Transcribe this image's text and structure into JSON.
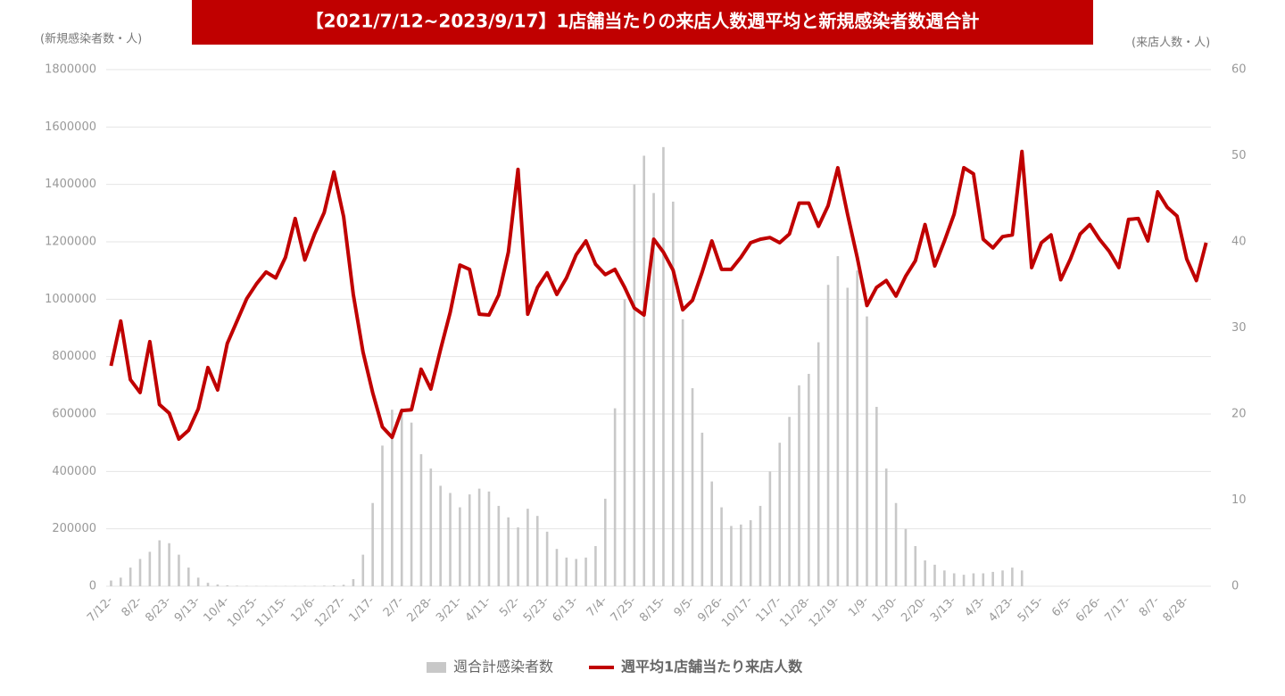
{
  "chart_data": {
    "type": "bar",
    "title": "【2021/7/12~2023/9/17】1店舗当たりの来店人数週平均と新規感染者数週合計",
    "y_label": "(新規感染者数・人)",
    "y2_label": "(来店人数・人)",
    "categories": [
      "7/12-",
      null,
      null,
      "8/2-",
      null,
      null,
      "8/23-",
      null,
      null,
      "9/13-",
      null,
      null,
      "10/4-",
      null,
      null,
      "10/25-",
      null,
      null,
      "11/15-",
      null,
      null,
      "12/6-",
      null,
      null,
      "12/27-",
      null,
      null,
      "1/17-",
      null,
      null,
      "2/7-",
      null,
      null,
      "2/28-",
      null,
      null,
      "3/21-",
      null,
      null,
      "4/11-",
      null,
      null,
      "5/2-",
      null,
      null,
      "5/23-",
      null,
      null,
      "6/13-",
      null,
      null,
      "7/4-",
      null,
      null,
      "7/25-",
      null,
      null,
      "8/15-",
      null,
      null,
      "9/5-",
      null,
      null,
      "9/26-",
      null,
      null,
      "10/17-",
      null,
      null,
      "11/7-",
      null,
      null,
      "11/28-",
      null,
      null,
      "12/19-",
      null,
      null,
      "1/9-",
      null,
      null,
      "1/30-",
      null,
      null,
      "2/20-",
      null,
      null,
      "3/13-",
      null,
      null,
      "4/3-",
      null,
      null,
      "4/23-",
      null,
      null,
      "5/15-",
      null,
      null,
      "6/5-",
      null,
      null,
      "6/26-",
      null,
      null,
      "7/17-",
      null,
      null,
      "8/7-",
      null,
      null,
      "8/28-",
      null,
      null
    ],
    "series": [
      {
        "name": "週合計感染者数",
        "type": "bar",
        "color": "#c8c8c8",
        "values": [
          20000,
          30000,
          65000,
          95000,
          120000,
          160000,
          150000,
          110000,
          65000,
          30000,
          12000,
          6000,
          3000,
          2000,
          1500,
          1000,
          800,
          700,
          800,
          1000,
          1200,
          1500,
          2000,
          3000,
          5000,
          25000,
          110000,
          290000,
          490000,
          615000,
          620000,
          570000,
          460000,
          410000,
          350000,
          325000,
          275000,
          320000,
          340000,
          330000,
          280000,
          240000,
          205000,
          270000,
          245000,
          190000,
          130000,
          100000,
          95000,
          100000,
          140000,
          305000,
          620000,
          1000000,
          1400000,
          1500000,
          1370000,
          1530000,
          1340000,
          930000,
          690000,
          535000,
          365000,
          275000,
          210000,
          215000,
          230000,
          280000,
          400000,
          500000,
          590000,
          700000,
          740000,
          850000,
          1050000,
          1150000,
          1040000,
          1100000,
          940000,
          625000,
          410000,
          290000,
          200000,
          140000,
          90000,
          75000,
          55000,
          45000,
          40000,
          45000,
          45000,
          50000,
          55000,
          65000,
          55000,
          null,
          null,
          null,
          null,
          null,
          null,
          null,
          null,
          null,
          null,
          null,
          null,
          null,
          null,
          null,
          null,
          null,
          null,
          null
        ]
      },
      {
        "name": "週平均1店舗当たり来店人数",
        "type": "line",
        "axis": "y2",
        "color": "#c00000",
        "values": [
          25.6,
          30.8,
          24,
          22.5,
          28.4,
          21.1,
          20.1,
          17.1,
          18.1,
          20.6,
          25.4,
          22.8,
          28.2,
          30.8,
          33.4,
          35.1,
          36.5,
          35.8,
          38.2,
          42.7,
          37.9,
          40.9,
          43.4,
          48.1,
          42.9,
          33.9,
          27.2,
          22.5,
          18.5,
          17.3,
          20.4,
          20.5,
          25.2,
          22.9,
          27.5,
          31.8,
          37.3,
          36.8,
          31.6,
          31.5,
          33.8,
          38.8,
          48.4,
          31.6,
          34.7,
          36.4,
          33.9,
          35.8,
          38.5,
          40.1,
          37.4,
          36.2,
          36.8,
          34.7,
          32.3,
          31.5,
          40.3,
          38.8,
          36.7,
          32.1,
          33.2,
          36.5,
          40.1,
          36.8,
          36.8,
          38.2,
          39.9,
          40.3,
          40.5,
          39.9,
          40.9,
          44.5,
          44.5,
          41.8,
          44.2,
          48.6,
          43.2,
          38.2,
          32.6,
          34.7,
          35.5,
          33.7,
          36,
          37.8,
          42,
          37.2,
          40.1,
          43.2,
          48.6,
          47.9,
          40.3,
          39.3,
          40.6,
          40.8,
          50.5,
          37,
          39.9,
          40.8,
          35.6,
          38,
          40.9,
          42,
          40.3,
          38.9,
          37,
          42.6,
          42.7,
          40.1,
          45.8,
          44,
          43,
          38,
          35.5,
          39.9
        ]
      }
    ],
    "ylim": [
      0,
      1800000
    ],
    "yticks": [
      0,
      200000,
      400000,
      600000,
      800000,
      1000000,
      1200000,
      1400000,
      1600000,
      1800000
    ],
    "y2lim": [
      0,
      60
    ],
    "y2ticks": [
      0,
      10,
      20,
      30,
      40,
      50,
      60
    ],
    "grid": true,
    "legend": "bottom"
  }
}
